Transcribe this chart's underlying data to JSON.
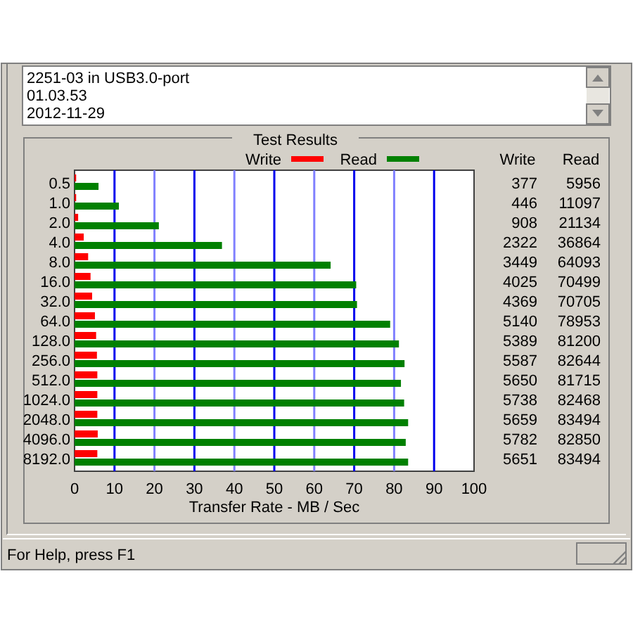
{
  "chart_data": [
    {
      "type": "bar",
      "orientation": "horizontal",
      "title": "Test Results",
      "xlabel": "Transfer Rate - MB / Sec",
      "categories": [
        "0.5",
        "1.0",
        "2.0",
        "4.0",
        "8.0",
        "16.0",
        "32.0",
        "64.0",
        "128.0",
        "256.0",
        "512.0",
        "1024.0",
        "2048.0",
        "4096.0",
        "8192.0"
      ],
      "series": [
        {
          "name": "Write",
          "color": "#ff0000",
          "values": [
            0.4,
            0.4,
            0.9,
            2.3,
            3.4,
            4.0,
            4.4,
            5.1,
            5.4,
            5.6,
            5.7,
            5.7,
            5.7,
            5.8,
            5.7
          ]
        },
        {
          "name": "Read",
          "color": "#008000",
          "values": [
            6.0,
            11.1,
            21.1,
            36.9,
            64.1,
            70.5,
            70.7,
            79.0,
            81.2,
            82.6,
            81.7,
            82.5,
            83.5,
            82.9,
            83.5
          ]
        }
      ],
      "xlim": [
        0,
        100
      ],
      "xticks": [
        0,
        10,
        20,
        30,
        40,
        50,
        60,
        70,
        80,
        90,
        100
      ],
      "grid": "x",
      "legend": "top",
      "annotations": [
        "2251-03 in USB3.0-port",
        "01.03.53",
        "2012-11-29",
        "For Help, press F1"
      ]
    },
    {
      "type": "other",
      "annotations": [
        "Write",
        "Read",
        "377",
        "5956",
        "446",
        "11097",
        "908",
        "21134",
        "2322",
        "36864",
        "3449",
        "64093",
        "4025",
        "70499",
        "4369",
        "70705",
        "5140",
        "78953",
        "5389",
        "81200",
        "5587",
        "82644",
        "5650",
        "81715",
        "5738",
        "82468",
        "5659",
        "83494",
        "5782",
        "82850",
        "5651",
        "83494"
      ]
    }
  ]
}
